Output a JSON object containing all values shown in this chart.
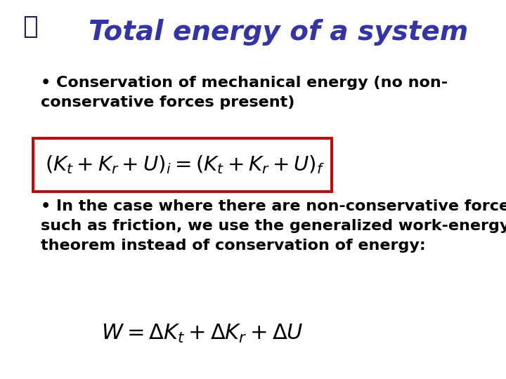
{
  "title": "Total energy of a system",
  "title_color": "#3333AA",
  "title_fontsize": 28,
  "bullet1": "• Conservation of mechanical energy (no non-\nconservative forces present)",
  "bullet2": "• In the case where there are non-conservative forces\nsuch as friction, we use the generalized work-energy\ntheorem instead of conservation of energy:",
  "formula1": "$(K_t + K_r + U)_i = (K_t + K_r + U)_f$",
  "formula2": "$W = \\Delta K_t + \\Delta K_r + \\Delta U$",
  "box_color": "#CC0000",
  "text_color": "#000000",
  "bg_color": "#FFFFFF",
  "bullet_fontsize": 16,
  "formula_fontsize": 22
}
